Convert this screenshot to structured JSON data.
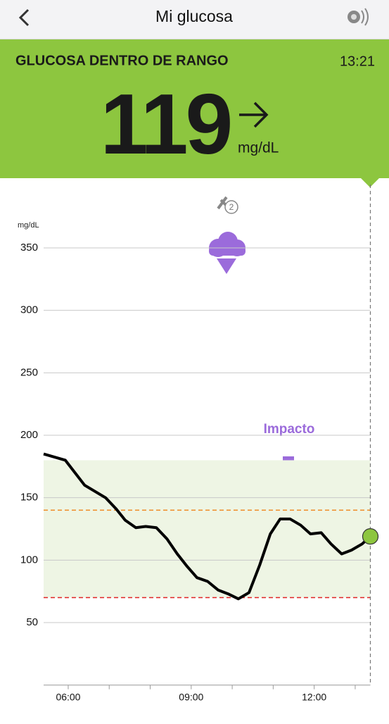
{
  "header": {
    "title": "Mi glucosa"
  },
  "banner": {
    "status": "GLUCOSA DENTRO DE RANGO",
    "time": "13:21",
    "value": 119,
    "unit": "mg/dL"
  },
  "events": {
    "insulin_count": 2,
    "annotation": "Impacto"
  },
  "chart_data": {
    "type": "line",
    "y_label": "mg/dL",
    "x": [
      5.4,
      5.93,
      6.4,
      6.91,
      7.17,
      7.39,
      7.65,
      7.89,
      8.15,
      8.41,
      8.66,
      8.9,
      9.14,
      9.4,
      9.66,
      9.9,
      10.15,
      10.41,
      10.67,
      10.93,
      11.17,
      11.41,
      11.67,
      11.91,
      12.17,
      12.41,
      12.67,
      12.91,
      13.17,
      13.37
    ],
    "series": [
      {
        "name": "Glucosa",
        "color": "#000000",
        "values": [
          185,
          180,
          160,
          150,
          141,
          132,
          126,
          127,
          126,
          117,
          105,
          95,
          86,
          83,
          76,
          73,
          69,
          74,
          96,
          121,
          133,
          133,
          128,
          121,
          122,
          113,
          105,
          108,
          113,
          119
        ]
      }
    ],
    "xlim": [
      5.4,
      13.37
    ],
    "xticks": [
      {
        "value": 6,
        "label": "06:00"
      },
      {
        "value": 9,
        "label": "09:00"
      },
      {
        "value": 12,
        "label": "12:00"
      }
    ],
    "xminor": [
      7,
      8,
      10,
      11,
      13
    ],
    "ylim": [
      0,
      370
    ],
    "yticks": [
      50,
      100,
      150,
      200,
      250,
      300,
      350
    ],
    "grid": true,
    "target_range": [
      70,
      180
    ],
    "high_line": 140,
    "low_line": 70,
    "range_color": "#eef5e4",
    "high_color": "#f08a24",
    "low_color": "#e02424",
    "marker_color": "#8dc63f"
  }
}
